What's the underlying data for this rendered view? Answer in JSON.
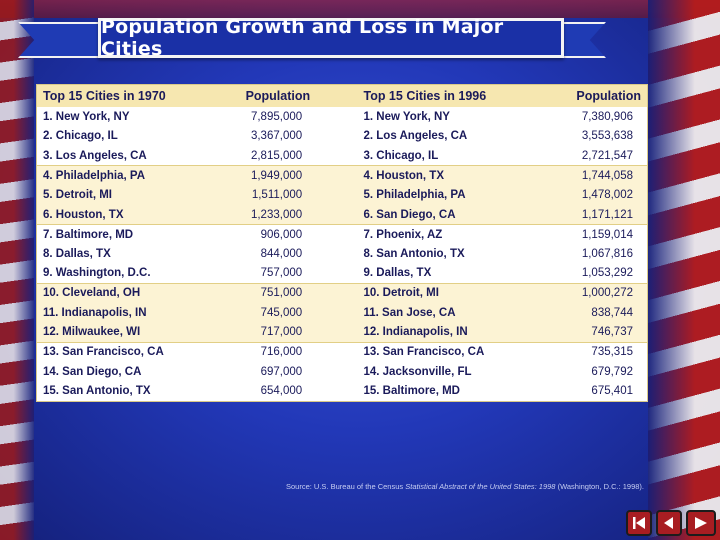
{
  "title": "Population Growth and Loss in Major Cities",
  "table": {
    "headers": {
      "left_city": "Top 15 Cities in 1970",
      "left_pop": "Population",
      "right_city": "Top 15 Cities in 1996",
      "right_pop": "Population"
    },
    "rows": [
      {
        "c1970": "1. New York, NY",
        "p1970": "7,895,000",
        "c1996": "1. New York, NY",
        "p1996": "7,380,906"
      },
      {
        "c1970": "2. Chicago, IL",
        "p1970": "3,367,000",
        "c1996": "2. Los Angeles, CA",
        "p1996": "3,553,638"
      },
      {
        "c1970": "3. Los Angeles, CA",
        "p1970": "2,815,000",
        "c1996": "3. Chicago, IL",
        "p1996": "2,721,547"
      },
      {
        "c1970": "4. Philadelphia, PA",
        "p1970": "1,949,000",
        "c1996": "4. Houston, TX",
        "p1996": "1,744,058"
      },
      {
        "c1970": "5. Detroit, MI",
        "p1970": "1,511,000",
        "c1996": "5. Philadelphia, PA",
        "p1996": "1,478,002"
      },
      {
        "c1970": "6. Houston, TX",
        "p1970": "1,233,000",
        "c1996": "6. San Diego, CA",
        "p1996": "1,171,121"
      },
      {
        "c1970": "7. Baltimore, MD",
        "p1970": "906,000",
        "c1996": "7. Phoenix, AZ",
        "p1996": "1,159,014"
      },
      {
        "c1970": "8. Dallas, TX",
        "p1970": "844,000",
        "c1996": "8. San Antonio, TX",
        "p1996": "1,067,816"
      },
      {
        "c1970": "9. Washington, D.C.",
        "p1970": "757,000",
        "c1996": "9. Dallas, TX",
        "p1996": "1,053,292"
      },
      {
        "c1970": "10. Cleveland, OH",
        "p1970": "751,000",
        "c1996": "10. Detroit, MI",
        "p1996": "1,000,272"
      },
      {
        "c1970": "11. Indianapolis, IN",
        "p1970": "745,000",
        "c1996": "11. San Jose, CA",
        "p1996": "838,744"
      },
      {
        "c1970": "12. Milwaukee, WI",
        "p1970": "717,000",
        "c1996": "12. Indianapolis, IN",
        "p1996": "746,737"
      },
      {
        "c1970": "13. San Francisco, CA",
        "p1970": "716,000",
        "c1996": "13. San Francisco, CA",
        "p1996": "735,315"
      },
      {
        "c1970": "14. San Diego, CA",
        "p1970": "697,000",
        "c1996": "14. Jacksonville, FL",
        "p1996": "679,792"
      },
      {
        "c1970": "15. San Antonio, TX",
        "p1970": "654,000",
        "c1996": "15. Baltimore, MD",
        "p1996": "675,401"
      }
    ]
  },
  "source": {
    "prefix": "Source: U.S. Bureau of the Census",
    "title": "Statistical Abstract of the United States: 1998",
    "suffix": "(Washington, D.C.: 1998)."
  },
  "nav": {
    "first_icon": "skip-to-start-icon",
    "back_icon": "back-arrow-icon",
    "exit_icon": "exit-icon"
  },
  "colors": {
    "background": "#2238b8",
    "header_fill": "#f6e7b0",
    "band_fill": "#fcf3d4",
    "button_red": "#a81d22"
  }
}
